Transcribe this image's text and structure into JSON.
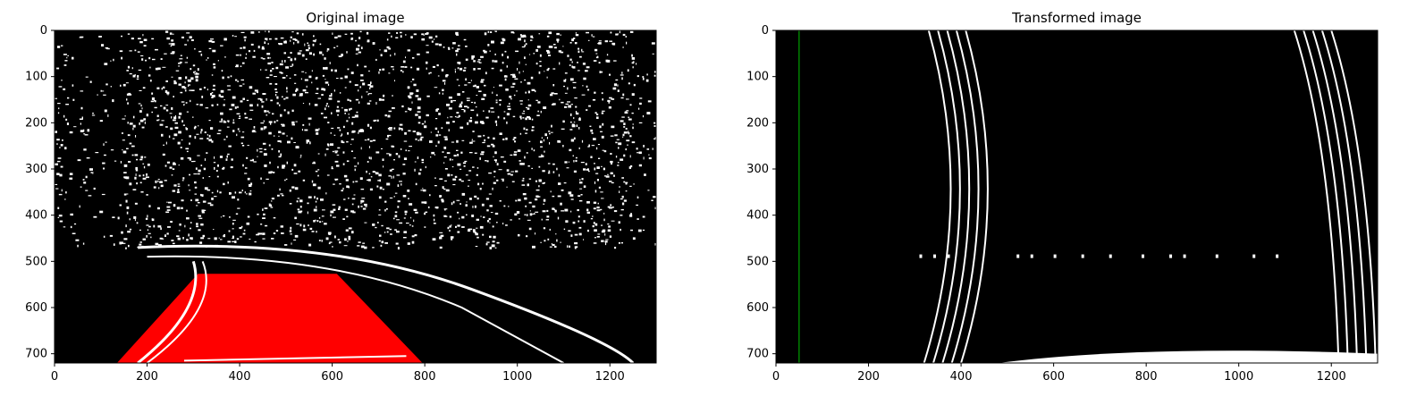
{
  "chart_data": [
    {
      "type": "image",
      "title": "Original image",
      "xlim": [
        0,
        1300
      ],
      "ylim": [
        720,
        0
      ],
      "xticks": [
        0,
        200,
        400,
        600,
        800,
        1000,
        1200
      ],
      "yticks": [
        0,
        100,
        200,
        300,
        400,
        500,
        600,
        700
      ],
      "overlay_polygon": {
        "color": "#ff0000",
        "points": [
          [
            135,
            720
          ],
          [
            310,
            527
          ],
          [
            610,
            527
          ],
          [
            795,
            720
          ]
        ]
      }
    },
    {
      "type": "image",
      "title": "Transformed image",
      "xlim": [
        0,
        1300
      ],
      "ylim": [
        720,
        0
      ],
      "xticks": [
        0,
        200,
        400,
        600,
        800,
        1000,
        1200
      ],
      "yticks": [
        0,
        100,
        200,
        300,
        400,
        500,
        600,
        700
      ],
      "vertical_line": {
        "x": 50,
        "color": "#00c000"
      }
    }
  ]
}
